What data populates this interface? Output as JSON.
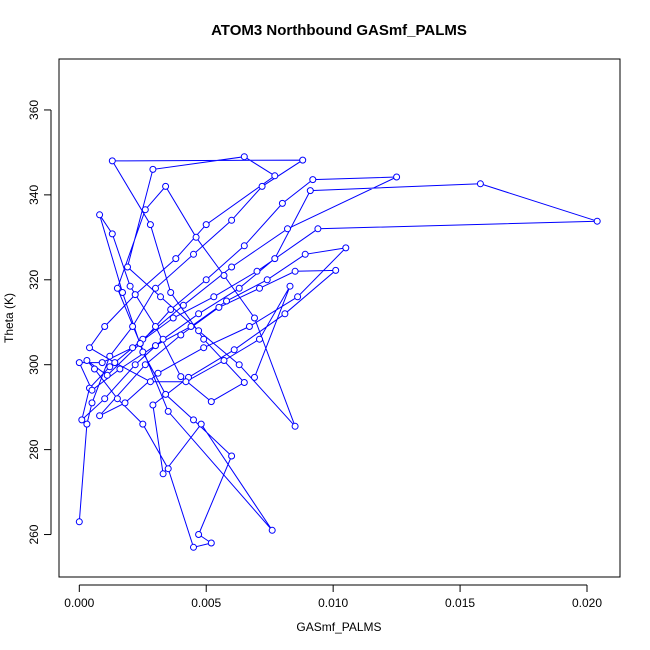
{
  "chart_data": {
    "type": "line",
    "title": "ATOM3 Northbound GASmf_PALMS",
    "xlabel": "GASmf_PALMS",
    "ylabel": "Theta (K)",
    "xlim": [
      -0.0008,
      0.0213
    ],
    "ylim": [
      250,
      372
    ],
    "xticks": [
      0.0,
      0.005,
      0.01,
      0.015,
      0.02
    ],
    "xtick_labels": [
      "0.000",
      "0.005",
      "0.010",
      "0.015",
      "0.020"
    ],
    "yticks": [
      260,
      280,
      300,
      320,
      340,
      360
    ],
    "ytick_labels": [
      "260",
      "280",
      "300",
      "320",
      "340",
      "360"
    ],
    "grid": false,
    "marker": "open-circle",
    "series": [
      {
        "name": "",
        "color": "#0000ff",
        "points": [
          [
            0.0,
            263.0
          ],
          [
            0.0003,
            286.0
          ],
          [
            0.0005,
            291.0
          ],
          [
            0.0012,
            302.0
          ],
          [
            0.0021,
            309.0
          ],
          [
            0.003,
            318.0
          ],
          [
            0.0045,
            326.0
          ],
          [
            0.006,
            334.0
          ],
          [
            0.0072,
            342.0
          ],
          [
            0.0088,
            348.2
          ],
          [
            0.0013,
            348.0
          ],
          [
            0.0028,
            333.0
          ],
          [
            0.0036,
            317.0
          ],
          [
            0.0049,
            306.0
          ],
          [
            0.0065,
            295.8
          ],
          [
            0.0052,
            291.3
          ],
          [
            0.004,
            297.2
          ],
          [
            0.003,
            309.0
          ],
          [
            0.002,
            318.5
          ],
          [
            0.0013,
            330.8
          ],
          [
            0.0008,
            335.3
          ],
          [
            0.0017,
            317.0
          ],
          [
            0.0025,
            303.0
          ],
          [
            0.0034,
            293.0
          ],
          [
            0.0045,
            287.0
          ],
          [
            0.006,
            278.5
          ],
          [
            0.0047,
            260.0
          ],
          [
            0.0052,
            258.0
          ],
          [
            0.0045,
            257.0
          ],
          [
            0.0035,
            275.5
          ],
          [
            0.0025,
            286.0
          ],
          [
            0.0015,
            292.0
          ],
          [
            0.0006,
            299.0
          ],
          [
            0.0003,
            301.0
          ],
          [
            0.0011,
            297.5
          ],
          [
            0.0024,
            305.0
          ],
          [
            0.0036,
            313.0
          ],
          [
            0.005,
            320.0
          ],
          [
            0.0065,
            328.0
          ],
          [
            0.008,
            338.0
          ],
          [
            0.0092,
            343.6
          ],
          [
            0.0125,
            344.2
          ],
          [
            0.0082,
            332.0
          ],
          [
            0.006,
            323.0
          ],
          [
            0.0041,
            314.0
          ],
          [
            0.0025,
            306.0
          ],
          [
            0.0012,
            299.5
          ],
          [
            0.0004,
            294.5
          ],
          [
            0.0001,
            287.0
          ],
          [
            0.001,
            292.0
          ],
          [
            0.0022,
            300.0
          ],
          [
            0.0033,
            306.0
          ],
          [
            0.0047,
            312.0
          ],
          [
            0.0063,
            318.0
          ],
          [
            0.0077,
            325.0
          ],
          [
            0.0091,
            341.0
          ],
          [
            0.0158,
            342.6
          ],
          [
            0.0204,
            333.8
          ],
          [
            0.0094,
            332.0
          ],
          [
            0.007,
            322.0
          ],
          [
            0.0053,
            316.0
          ],
          [
            0.0037,
            311.0
          ],
          [
            0.0021,
            304.0
          ],
          [
            0.0009,
            300.5
          ],
          [
            0.0,
            300.5
          ],
          [
            0.0005,
            294.0
          ],
          [
            0.0016,
            299.0
          ],
          [
            0.003,
            304.5
          ],
          [
            0.0044,
            309.0
          ],
          [
            0.0058,
            315.0
          ],
          [
            0.0074,
            320.0
          ],
          [
            0.0089,
            326.0
          ],
          [
            0.0105,
            327.5
          ],
          [
            0.0086,
            316.0
          ],
          [
            0.0067,
            309.0
          ],
          [
            0.0049,
            304.0
          ],
          [
            0.0031,
            298.0
          ],
          [
            0.0018,
            291.0
          ],
          [
            0.0008,
            288.0
          ],
          [
            0.0026,
            300.0
          ],
          [
            0.004,
            307.0
          ],
          [
            0.0055,
            313.5
          ],
          [
            0.0071,
            318.0
          ],
          [
            0.0085,
            322.0
          ],
          [
            0.0101,
            322.2
          ],
          [
            0.0081,
            312.0
          ],
          [
            0.0061,
            303.5
          ],
          [
            0.0043,
            297.0
          ],
          [
            0.0029,
            290.5
          ],
          [
            0.0033,
            274.3
          ],
          [
            0.0048,
            286.0
          ],
          [
            0.0076,
            261.0
          ],
          [
            0.0035,
            289.0
          ],
          [
            0.0024,
            305.0
          ],
          [
            0.0015,
            318.0
          ],
          [
            0.0026,
            336.5
          ],
          [
            0.0034,
            342.0
          ],
          [
            0.0046,
            330.0
          ],
          [
            0.0057,
            321.0
          ],
          [
            0.0069,
            311.0
          ],
          [
            0.0085,
            285.5
          ],
          [
            0.0063,
            300.0
          ],
          [
            0.0047,
            308.0
          ],
          [
            0.0032,
            316.0
          ],
          [
            0.0019,
            323.0
          ],
          [
            0.0029,
            346.0
          ],
          [
            0.0065,
            349.0
          ],
          [
            0.0077,
            344.5
          ],
          [
            0.005,
            333.0
          ],
          [
            0.0038,
            325.0
          ],
          [
            0.0022,
            316.5
          ],
          [
            0.001,
            309.0
          ],
          [
            0.0004,
            304.0
          ],
          [
            0.0014,
            300.5
          ],
          [
            0.0028,
            296.0
          ],
          [
            0.0042,
            296.0
          ],
          [
            0.0057,
            301.0
          ],
          [
            0.0071,
            306.0
          ],
          [
            0.0083,
            318.5
          ],
          [
            0.0069,
            297.0
          ]
        ]
      }
    ]
  }
}
